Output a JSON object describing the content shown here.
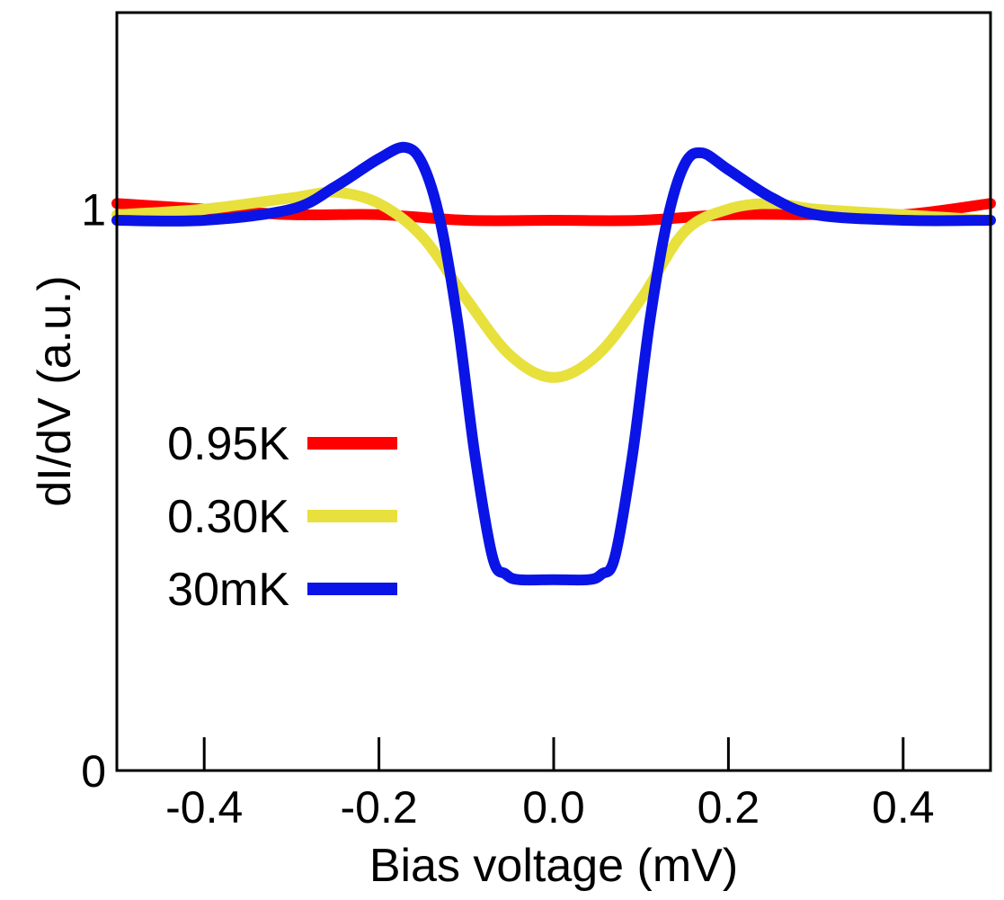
{
  "chart_data": {
    "type": "line",
    "title": "",
    "xlabel": "Bias voltage (mV)",
    "ylabel": "dI/dV (a.u.)",
    "xlim": [
      -0.5,
      0.5
    ],
    "ylim": [
      0,
      1.35
    ],
    "xticks": [
      -0.4,
      -0.2,
      0.0,
      0.2,
      0.4
    ],
    "xtick_labels": [
      "-0.4",
      "-0.2",
      "0.0",
      "0.2",
      "0.4"
    ],
    "yticks": [
      0,
      1
    ],
    "ytick_labels": [
      "0",
      "1"
    ],
    "grid": false,
    "legend_position": "center-left",
    "series": [
      {
        "name": "0.95K",
        "color": "#ff0000",
        "x": [
          -0.5,
          -0.4,
          -0.3,
          -0.2,
          -0.1,
          0.0,
          0.1,
          0.2,
          0.3,
          0.4,
          0.5
        ],
        "y": [
          1.01,
          1.0,
          0.99,
          0.99,
          0.98,
          0.98,
          0.98,
          0.99,
          0.99,
          0.99,
          1.01
        ]
      },
      {
        "name": "0.30K",
        "color": "#e8e03c",
        "x": [
          -0.5,
          -0.4,
          -0.3,
          -0.25,
          -0.2,
          -0.15,
          -0.1,
          -0.05,
          0.0,
          0.05,
          0.1,
          0.15,
          0.2,
          0.25,
          0.3,
          0.4,
          0.5
        ],
        "y": [
          0.99,
          1.0,
          1.02,
          1.03,
          1.01,
          0.95,
          0.84,
          0.74,
          0.7,
          0.74,
          0.84,
          0.96,
          1.0,
          1.01,
          1.0,
          0.99,
          0.98
        ]
      },
      {
        "name": "30mK",
        "color": "#0a14e6",
        "x": [
          -0.5,
          -0.4,
          -0.3,
          -0.25,
          -0.2,
          -0.17,
          -0.15,
          -0.13,
          -0.11,
          -0.09,
          -0.07,
          -0.055,
          -0.04,
          0.0,
          0.04,
          0.055,
          0.07,
          0.09,
          0.11,
          0.13,
          0.15,
          0.17,
          0.2,
          0.25,
          0.3,
          0.4,
          0.5
        ],
        "y": [
          0.98,
          0.98,
          1.0,
          1.04,
          1.09,
          1.11,
          1.08,
          0.98,
          0.8,
          0.56,
          0.38,
          0.35,
          0.34,
          0.34,
          0.34,
          0.35,
          0.38,
          0.56,
          0.8,
          0.98,
          1.08,
          1.1,
          1.07,
          1.02,
          0.99,
          0.98,
          0.98
        ]
      }
    ]
  }
}
